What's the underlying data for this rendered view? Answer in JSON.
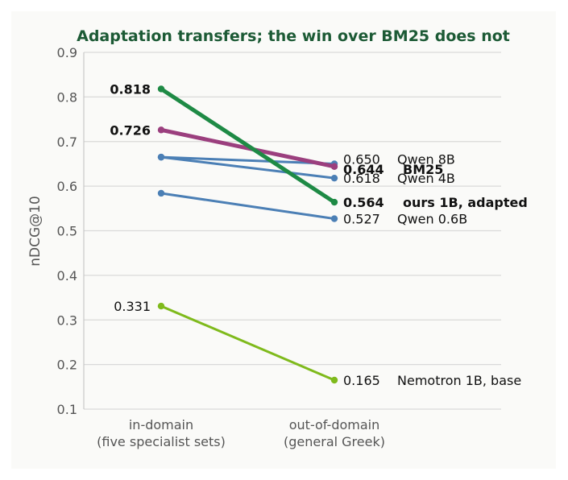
{
  "chart_data": {
    "type": "line",
    "title": "Adaptation transfers; the win over BM25 does not",
    "ylabel": "nDCG@10",
    "ylim": [
      0.1,
      0.9
    ],
    "yticks": [
      "0.1",
      "0.2",
      "0.3",
      "0.4",
      "0.5",
      "0.6",
      "0.7",
      "0.8",
      "0.9"
    ],
    "categories": [
      [
        "in-domain",
        "(five specialist sets)"
      ],
      [
        "out-of-domain",
        "(general Greek)"
      ]
    ],
    "series": [
      {
        "name": "Qwen 8B",
        "values": [
          0.665,
          0.65
        ],
        "color": "#4b7fb5",
        "width": 3,
        "left_label": "",
        "right_label": "0.650",
        "right_name": "Qwen 8B",
        "bold": false
      },
      {
        "name": "BM25",
        "values": [
          0.726,
          0.644
        ],
        "color": "#9b3f7e",
        "width": 5,
        "left_label": "0.726",
        "right_label": "0.644",
        "right_name": "BM25",
        "bold": true
      },
      {
        "name": "Qwen 4B",
        "values": [
          0.665,
          0.618
        ],
        "color": "#4b7fb5",
        "width": 3,
        "left_label": "",
        "right_label": "0.618",
        "right_name": "Qwen 4B",
        "bold": false
      },
      {
        "name": "ours 1B, adapted",
        "values": [
          0.818,
          0.564
        ],
        "color": "#1e8a45",
        "width": 5,
        "left_label": "0.818",
        "right_label": "0.564",
        "right_name": "ours 1B, adapted",
        "bold": true
      },
      {
        "name": "Qwen 0.6B",
        "values": [
          0.584,
          0.527
        ],
        "color": "#4b7fb5",
        "width": 3,
        "left_label": "",
        "right_label": "0.527",
        "right_name": "Qwen 0.6B",
        "bold": false
      },
      {
        "name": "Nemotron 1B, base",
        "values": [
          0.331,
          0.165
        ],
        "color": "#7fba1c",
        "width": 3,
        "left_label": "0.331",
        "right_label": "0.165",
        "right_name": "Nemotron 1B, base",
        "bold": false
      }
    ],
    "grid": true,
    "legend": "none"
  }
}
